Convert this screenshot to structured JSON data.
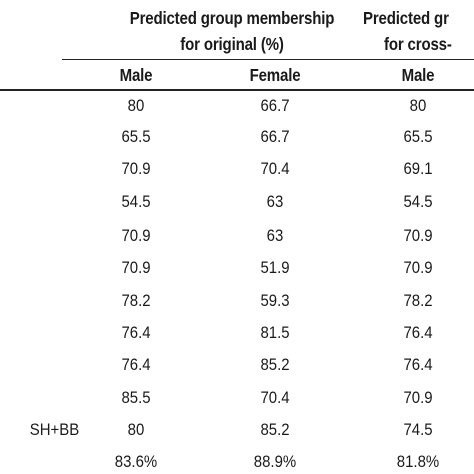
{
  "table": {
    "group1_header_line1": "Predicted group membership",
    "group1_header_line2": "for original (%)",
    "group2_header_line1": "Predicted gr",
    "group2_header_line2": "for cross-",
    "columns": [
      "Male",
      "Female",
      "Male"
    ],
    "rows": [
      {
        "label": "",
        "values": [
          "80",
          "66.7",
          "80"
        ]
      },
      {
        "label": "",
        "values": [
          "65.5",
          "66.7",
          "65.5"
        ]
      },
      {
        "label": "",
        "values": [
          "70.9",
          "70.4",
          "69.1"
        ]
      },
      {
        "label": "",
        "values": [
          "54.5",
          "63",
          "54.5"
        ]
      },
      {
        "label": "",
        "values": [
          "70.9",
          "63",
          "70.9"
        ]
      },
      {
        "label": "",
        "values": [
          "70.9",
          "51.9",
          "70.9"
        ]
      },
      {
        "label": "",
        "values": [
          "78.2",
          "59.3",
          "78.2"
        ]
      },
      {
        "label": "",
        "values": [
          "76.4",
          "81.5",
          "76.4"
        ]
      },
      {
        "label": "",
        "values": [
          "76.4",
          "85.2",
          "76.4"
        ]
      },
      {
        "label": "",
        "values": [
          "85.5",
          "70.4",
          "70.9"
        ]
      },
      {
        "label": "SH+BB",
        "values": [
          "80",
          "85.2",
          "74.5"
        ]
      },
      {
        "label": "",
        "values": [
          "83.6%",
          "88.9%",
          "81.8%"
        ]
      }
    ]
  }
}
